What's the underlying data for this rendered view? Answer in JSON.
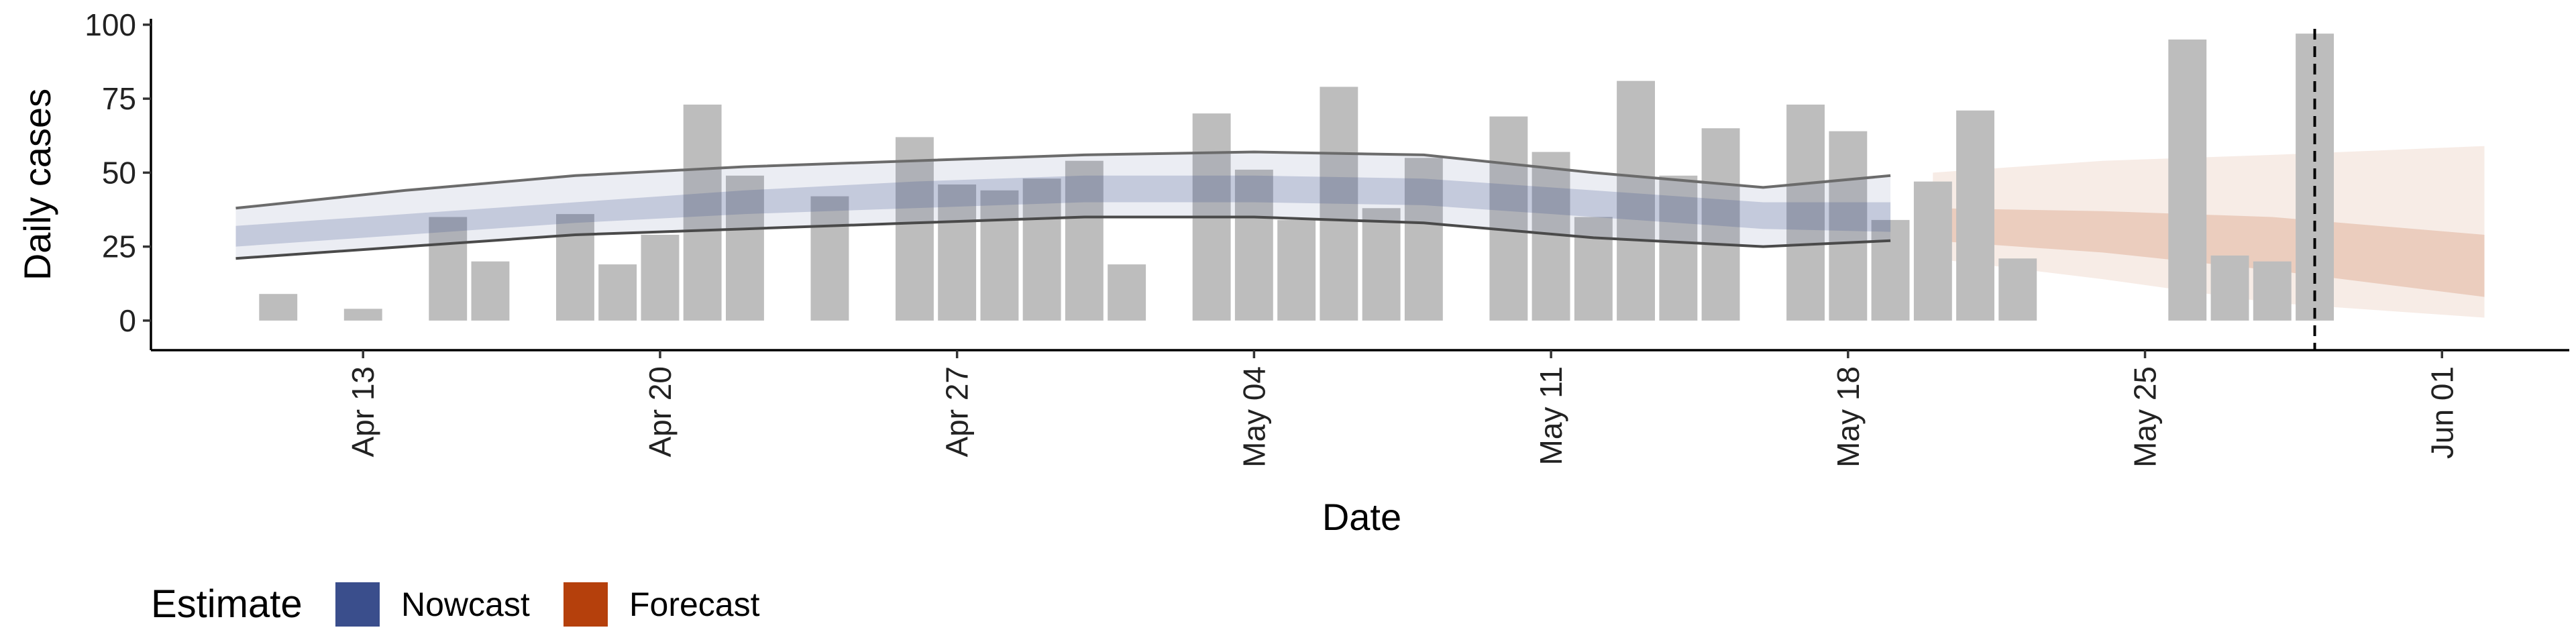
{
  "chart_data": {
    "type": "bar",
    "xlabel": "Date",
    "ylabel": "Daily cases",
    "ylim": [
      -10,
      102
    ],
    "xlim": [
      "2020-04-08",
      "2020-06-04"
    ],
    "y_ticks": [
      0,
      25,
      50,
      75,
      100
    ],
    "x_ticks": [
      {
        "date": "2020-04-13",
        "label": "Apr 13"
      },
      {
        "date": "2020-04-20",
        "label": "Apr 20"
      },
      {
        "date": "2020-04-27",
        "label": "Apr 27"
      },
      {
        "date": "2020-05-04",
        "label": "May 04"
      },
      {
        "date": "2020-05-11",
        "label": "May 11"
      },
      {
        "date": "2020-05-18",
        "label": "May 18"
      },
      {
        "date": "2020-05-25",
        "label": "May 25"
      },
      {
        "date": "2020-06-01",
        "label": "Jun 01"
      }
    ],
    "grid": false,
    "vline_date": "2020-05-29",
    "bars": {
      "color": "#bdbdbd",
      "points": [
        {
          "date": "2020-04-11",
          "value": 9
        },
        {
          "date": "2020-04-13",
          "value": 4
        },
        {
          "date": "2020-04-15",
          "value": 35
        },
        {
          "date": "2020-04-16",
          "value": 20
        },
        {
          "date": "2020-04-18",
          "value": 36
        },
        {
          "date": "2020-04-19",
          "value": 19
        },
        {
          "date": "2020-04-20",
          "value": 29
        },
        {
          "date": "2020-04-21",
          "value": 73
        },
        {
          "date": "2020-04-22",
          "value": 49
        },
        {
          "date": "2020-04-24",
          "value": 42
        },
        {
          "date": "2020-04-26",
          "value": 62
        },
        {
          "date": "2020-04-27",
          "value": 46
        },
        {
          "date": "2020-04-28",
          "value": 44
        },
        {
          "date": "2020-04-29",
          "value": 48
        },
        {
          "date": "2020-04-30",
          "value": 54
        },
        {
          "date": "2020-05-01",
          "value": 19
        },
        {
          "date": "2020-05-03",
          "value": 70
        },
        {
          "date": "2020-05-04",
          "value": 51
        },
        {
          "date": "2020-05-05",
          "value": 34
        },
        {
          "date": "2020-05-06",
          "value": 79
        },
        {
          "date": "2020-05-07",
          "value": 38
        },
        {
          "date": "2020-05-08",
          "value": 55
        },
        {
          "date": "2020-05-10",
          "value": 69
        },
        {
          "date": "2020-05-11",
          "value": 57
        },
        {
          "date": "2020-05-12",
          "value": 35
        },
        {
          "date": "2020-05-13",
          "value": 81
        },
        {
          "date": "2020-05-14",
          "value": 49
        },
        {
          "date": "2020-05-15",
          "value": 65
        },
        {
          "date": "2020-05-17",
          "value": 73
        },
        {
          "date": "2020-05-18",
          "value": 64
        },
        {
          "date": "2020-05-19",
          "value": 34
        },
        {
          "date": "2020-05-20",
          "value": 47
        },
        {
          "date": "2020-05-21",
          "value": 71
        },
        {
          "date": "2020-05-22",
          "value": 21
        },
        {
          "date": "2020-05-26",
          "value": 95
        },
        {
          "date": "2020-05-27",
          "value": 22
        },
        {
          "date": "2020-05-28",
          "value": 20
        },
        {
          "date": "2020-05-29",
          "value": 97
        }
      ]
    },
    "series": [
      {
        "name": "Nowcast",
        "color": "#3a4e8c",
        "dates": [
          "2020-04-10",
          "2020-04-14",
          "2020-04-18",
          "2020-04-22",
          "2020-04-26",
          "2020-04-30",
          "2020-05-04",
          "2020-05-08",
          "2020-05-12",
          "2020-05-16",
          "2020-05-19"
        ],
        "outer_upper": [
          38,
          44,
          49,
          52,
          54,
          56,
          57,
          56,
          50,
          45,
          49
        ],
        "outer_lower": [
          21,
          25,
          29,
          31,
          33,
          35,
          35,
          33,
          28,
          25,
          27
        ],
        "inner_upper": [
          32,
          36,
          40,
          44,
          47,
          49,
          49,
          48,
          44,
          40,
          40
        ],
        "inner_lower": [
          25,
          29,
          33,
          36,
          38,
          40,
          40,
          39,
          35,
          31,
          30
        ]
      },
      {
        "name": "Forecast",
        "color": "#b5400c",
        "dates": [
          "2020-05-20",
          "2020-05-24",
          "2020-05-28",
          "2020-06-02"
        ],
        "outer_upper": [
          50,
          54,
          56,
          59
        ],
        "outer_lower": [
          21,
          14,
          6,
          1
        ],
        "inner_upper": [
          38,
          37,
          35,
          29
        ],
        "inner_lower": [
          27,
          23,
          17,
          8
        ]
      }
    ],
    "legend": {
      "title": "Estimate",
      "position": "bottom-left",
      "items": [
        {
          "label": "Nowcast",
          "color": "#3a4e8c"
        },
        {
          "label": "Forecast",
          "color": "#b5400c"
        }
      ]
    }
  }
}
